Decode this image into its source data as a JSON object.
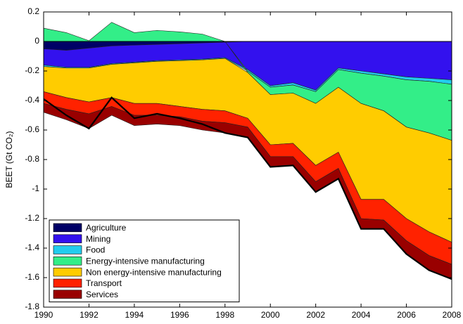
{
  "chart_data": {
    "type": "stacked_area",
    "y_label": "BEET (Gt CO₂)",
    "x": [
      1990,
      1991,
      1992,
      1993,
      1994,
      1995,
      1996,
      1997,
      1998,
      1999,
      2000,
      2001,
      2002,
      2003,
      2004,
      2005,
      2006,
      2007,
      2008
    ],
    "xlim": [
      1990,
      2008
    ],
    "xticks": [
      1990,
      1992,
      1994,
      1996,
      1998,
      2000,
      2002,
      2004,
      2006,
      2008
    ],
    "ylim": [
      -1.8,
      0.2
    ],
    "yticks": [
      0.2,
      0,
      -0.2,
      -0.4,
      -0.6,
      -0.8,
      -1,
      -1.2,
      -1.4,
      -1.6,
      -1.8
    ],
    "grid": false,
    "legend": "lower left",
    "series": [
      {
        "name": "Agriculture",
        "color": "#000066",
        "values": [
          -0.05,
          -0.06,
          -0.045,
          -0.03,
          -0.025,
          -0.02,
          -0.015,
          -0.01,
          -0.005,
          0,
          0,
          0,
          0,
          0,
          0,
          0,
          0,
          0,
          0
        ]
      },
      {
        "name": "Mining",
        "color": "#3311ee",
        "values": [
          -0.11,
          -0.115,
          -0.13,
          -0.12,
          -0.115,
          -0.11,
          -0.11,
          -0.11,
          -0.105,
          -0.19,
          -0.3,
          -0.28,
          -0.33,
          -0.18,
          -0.2,
          -0.22,
          -0.24,
          -0.25,
          -0.26
        ]
      },
      {
        "name": "Food",
        "color": "#22ccee",
        "values": [
          -0.01,
          -0.005,
          -0.005,
          -0.005,
          -0.005,
          -0.005,
          -0.005,
          -0.005,
          -0.005,
          -0.01,
          -0.01,
          -0.015,
          -0.01,
          -0.01,
          -0.015,
          -0.015,
          -0.02,
          -0.02,
          -0.03
        ]
      },
      {
        "name": "Energy-intensive manufacturing",
        "color": "#33ee88",
        "values": [
          0.09,
          0.06,
          0.005,
          0.13,
          0.06,
          0.075,
          0.065,
          0.05,
          0,
          -0.01,
          -0.05,
          -0.055,
          -0.08,
          -0.12,
          -0.205,
          -0.235,
          -0.32,
          -0.35,
          -0.38
        ]
      },
      {
        "name": "Non energy-intensive manufacturing",
        "color": "#ffcc00",
        "values": [
          -0.17,
          -0.2,
          -0.23,
          -0.225,
          -0.275,
          -0.285,
          -0.31,
          -0.335,
          -0.355,
          -0.31,
          -0.34,
          -0.34,
          -0.42,
          -0.44,
          -0.65,
          -0.6,
          -0.62,
          -0.67,
          -0.69
        ]
      },
      {
        "name": "Transport",
        "color": "#ff2200",
        "values": [
          -0.08,
          -0.08,
          -0.08,
          -0.06,
          -0.08,
          -0.08,
          -0.07,
          -0.08,
          -0.08,
          -0.06,
          -0.08,
          -0.09,
          -0.11,
          -0.11,
          -0.13,
          -0.14,
          -0.15,
          -0.16,
          -0.15
        ]
      },
      {
        "name": "Services",
        "color": "#990000",
        "values": [
          -0.06,
          -0.07,
          -0.1,
          -0.06,
          -0.07,
          -0.06,
          -0.06,
          -0.06,
          -0.07,
          -0.07,
          -0.07,
          -0.06,
          -0.07,
          -0.07,
          -0.07,
          -0.06,
          -0.09,
          -0.1,
          -0.1
        ]
      }
    ],
    "net_line": {
      "color": "#000000",
      "values": [
        -0.39,
        -0.5,
        -0.59,
        -0.38,
        -0.52,
        -0.49,
        -0.52,
        -0.56,
        -0.62,
        -0.65,
        -0.85,
        -0.84,
        -1.02,
        -0.93,
        -1.27,
        -1.27,
        -1.44,
        -1.55,
        -1.61
      ]
    }
  }
}
